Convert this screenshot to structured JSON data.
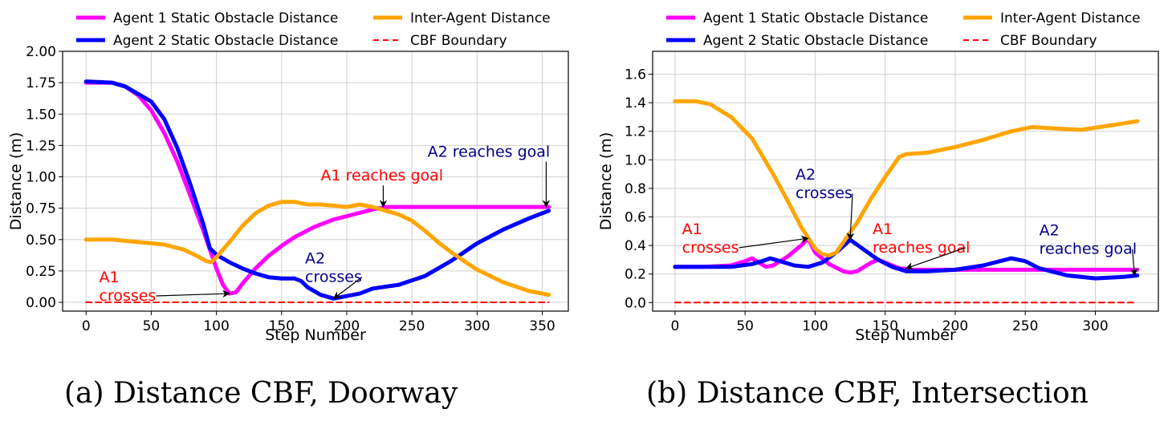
{
  "chart_data": [
    {
      "type": "line",
      "caption": "(a) Distance CBF, Doorway",
      "xlabel": "Step Number",
      "ylabel": "Distance (m)",
      "xlim": [
        -18,
        370
      ],
      "ylim": [
        -0.07,
        2.0
      ],
      "xticks": [
        0,
        50,
        100,
        150,
        200,
        250,
        300,
        350
      ],
      "yticks": [
        0.0,
        0.25,
        0.5,
        0.75,
        1.0,
        1.25,
        1.5,
        1.75,
        2.0
      ],
      "ytick_decimals": 2,
      "grid": true,
      "legend": {
        "placement": "top",
        "entries": [
          {
            "label": "Agent 1 Static Obstacle Distance",
            "series": 0
          },
          {
            "label": "Inter-Agent Distance",
            "series": 2
          },
          {
            "label": "Agent 2 Static Obstacle Distance",
            "series": 1
          },
          {
            "label": "CBF Boundary",
            "series": 3
          }
        ]
      },
      "series": [
        {
          "name": "Agent 1 Static Obstacle Distance",
          "color": "#ff00ff",
          "style": "solid",
          "x": [
            0,
            20,
            30,
            40,
            50,
            60,
            70,
            80,
            90,
            100,
            105,
            110,
            115,
            120,
            130,
            140,
            150,
            160,
            175,
            190,
            205,
            220,
            230,
            260,
            300,
            355
          ],
          "y": [
            1.75,
            1.75,
            1.72,
            1.65,
            1.53,
            1.35,
            1.12,
            0.85,
            0.57,
            0.27,
            0.14,
            0.07,
            0.08,
            0.15,
            0.27,
            0.37,
            0.45,
            0.52,
            0.6,
            0.66,
            0.7,
            0.74,
            0.76,
            0.76,
            0.76,
            0.76
          ]
        },
        {
          "name": "Agent 2 Static Obstacle Distance",
          "color": "#0000ff",
          "style": "solid",
          "x": [
            0,
            20,
            30,
            40,
            50,
            60,
            70,
            80,
            90,
            95,
            100,
            110,
            120,
            130,
            140,
            150,
            160,
            165,
            170,
            180,
            190,
            200,
            210,
            220,
            240,
            260,
            280,
            300,
            320,
            340,
            355
          ],
          "y": [
            1.76,
            1.75,
            1.72,
            1.66,
            1.6,
            1.46,
            1.23,
            0.94,
            0.62,
            0.43,
            0.38,
            0.32,
            0.27,
            0.23,
            0.2,
            0.19,
            0.19,
            0.17,
            0.12,
            0.06,
            0.03,
            0.05,
            0.07,
            0.11,
            0.14,
            0.21,
            0.33,
            0.47,
            0.58,
            0.67,
            0.73
          ]
        },
        {
          "name": "Inter-Agent Distance",
          "color": "#ffa500",
          "style": "solid",
          "x": [
            0,
            20,
            40,
            60,
            75,
            85,
            92,
            96,
            100,
            110,
            120,
            130,
            140,
            150,
            160,
            170,
            180,
            190,
            200,
            210,
            220,
            230,
            240,
            250,
            260,
            270,
            280,
            290,
            300,
            320,
            340,
            355
          ],
          "y": [
            0.5,
            0.5,
            0.48,
            0.46,
            0.42,
            0.37,
            0.33,
            0.32,
            0.36,
            0.48,
            0.61,
            0.71,
            0.77,
            0.8,
            0.8,
            0.78,
            0.78,
            0.77,
            0.76,
            0.78,
            0.76,
            0.73,
            0.7,
            0.65,
            0.57,
            0.48,
            0.4,
            0.33,
            0.26,
            0.16,
            0.09,
            0.06
          ]
        },
        {
          "name": "CBF Boundary",
          "color": "#ff0000",
          "style": "dashed",
          "x": [
            0,
            355
          ],
          "y": [
            0,
            0
          ]
        }
      ],
      "annotations": [
        {
          "text": "A1|crosses",
          "color": "#ff0000",
          "target": [
            110,
            0.07
          ],
          "label_at": [
            10,
            0.16
          ]
        },
        {
          "text": "A2|crosses",
          "color": "#00008b",
          "target": [
            190,
            0.03
          ],
          "label_at": [
            168,
            0.31
          ]
        },
        {
          "text": "A1 reaches goal",
          "color": "#ff0000",
          "target": [
            228,
            0.76
          ],
          "label_at": [
            180,
            0.97
          ]
        },
        {
          "text": "A2 reaches goal",
          "color": "#00008b",
          "target": [
            353,
            0.76
          ],
          "label_at": [
            262,
            1.16
          ]
        }
      ]
    },
    {
      "type": "line",
      "caption": "(b) Distance CBF, Intersection",
      "xlabel": "Step Number",
      "ylabel": "Distance (m)",
      "xlim": [
        -16,
        345
      ],
      "ylim": [
        -0.06,
        1.76
      ],
      "xticks": [
        0,
        50,
        100,
        150,
        200,
        250,
        300
      ],
      "yticks": [
        0.0,
        0.2,
        0.4,
        0.6,
        0.8,
        1.0,
        1.2,
        1.4,
        1.6
      ],
      "ytick_decimals": 1,
      "grid": true,
      "legend": {
        "placement": "top",
        "entries": [
          {
            "label": "Agent 1 Static Obstacle Distance",
            "series": 0
          },
          {
            "label": "Inter-Agent Distance",
            "series": 2
          },
          {
            "label": "Agent 2 Static Obstacle Distance",
            "series": 1
          },
          {
            "label": "CBF Boundary",
            "series": 3
          }
        ]
      },
      "series": [
        {
          "name": "Agent 1 Static Obstacle Distance",
          "color": "#ff00ff",
          "style": "solid",
          "x": [
            0,
            20,
            40,
            50,
            55,
            60,
            65,
            70,
            80,
            90,
            95,
            100,
            110,
            120,
            125,
            130,
            140,
            145,
            150,
            160,
            170,
            200,
            250,
            300,
            330
          ],
          "y": [
            0.25,
            0.25,
            0.26,
            0.29,
            0.31,
            0.28,
            0.25,
            0.26,
            0.32,
            0.4,
            0.45,
            0.35,
            0.27,
            0.22,
            0.21,
            0.22,
            0.28,
            0.3,
            0.28,
            0.24,
            0.23,
            0.23,
            0.23,
            0.23,
            0.23
          ]
        },
        {
          "name": "Agent 2 Static Obstacle Distance",
          "color": "#0000ff",
          "style": "solid",
          "x": [
            0,
            20,
            40,
            55,
            62,
            68,
            75,
            85,
            95,
            105,
            115,
            125,
            135,
            145,
            155,
            165,
            180,
            200,
            220,
            240,
            250,
            260,
            280,
            300,
            320,
            330
          ],
          "y": [
            0.25,
            0.25,
            0.25,
            0.27,
            0.29,
            0.31,
            0.29,
            0.26,
            0.25,
            0.28,
            0.35,
            0.44,
            0.37,
            0.3,
            0.25,
            0.22,
            0.22,
            0.23,
            0.26,
            0.31,
            0.29,
            0.24,
            0.19,
            0.17,
            0.18,
            0.19
          ]
        },
        {
          "name": "Inter-Agent Distance",
          "color": "#ffa500",
          "style": "solid",
          "x": [
            0,
            15,
            25,
            40,
            55,
            70,
            80,
            90,
            100,
            105,
            110,
            115,
            120,
            130,
            140,
            150,
            160,
            165,
            180,
            200,
            220,
            240,
            255,
            270,
            290,
            310,
            330
          ],
          "y": [
            1.41,
            1.41,
            1.39,
            1.3,
            1.15,
            0.9,
            0.72,
            0.53,
            0.38,
            0.34,
            0.33,
            0.35,
            0.42,
            0.56,
            0.73,
            0.88,
            1.02,
            1.04,
            1.05,
            1.09,
            1.14,
            1.2,
            1.23,
            1.22,
            1.21,
            1.24,
            1.27
          ]
        },
        {
          "name": "CBF Boundary",
          "color": "#ff0000",
          "style": "dashed",
          "x": [
            0,
            330
          ],
          "y": [
            0,
            0
          ]
        }
      ],
      "annotations": [
        {
          "text": "A1|crosses",
          "color": "#ff0000",
          "target": [
            95,
            0.45
          ],
          "label_at": [
            5,
            0.48
          ]
        },
        {
          "text": "A2|crosses",
          "color": "#00008b",
          "target": [
            125,
            0.44
          ],
          "label_at": [
            86,
            0.86
          ]
        },
        {
          "text": "A1|reaches goal",
          "color": "#ff0000",
          "target": [
            165,
            0.24
          ],
          "label_at": [
            141,
            0.48
          ]
        },
        {
          "text": "A2|reaches goal",
          "color": "#00008b",
          "target": [
            328,
            0.19
          ],
          "label_at": [
            260,
            0.47
          ]
        }
      ]
    }
  ]
}
